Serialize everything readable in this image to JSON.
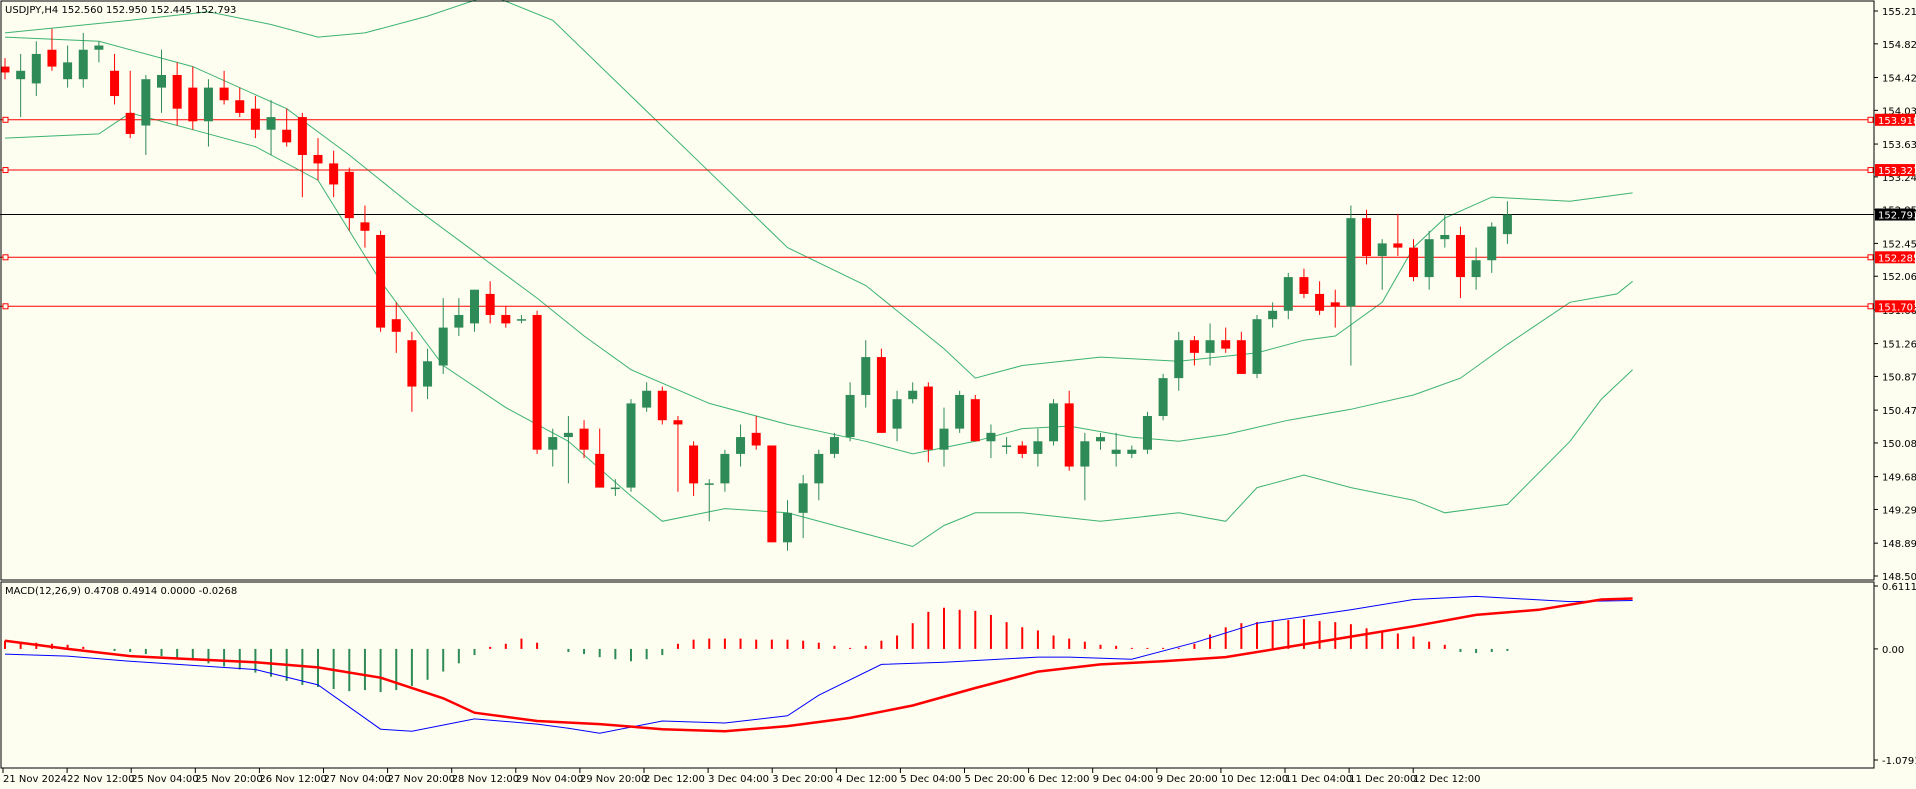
{
  "window": {
    "symbol_caption": "USDJPY,H4  152.560 152.950 152.445 152.793",
    "macd_caption": "MACD(12,26,9) 0.4708 0.4914 0.0000 -0.0268"
  },
  "colors": {
    "background": "#fdfdf0",
    "bull": "#2e8b57",
    "bear": "#ff0000",
    "bands": "#3cb371",
    "level": "#ff0000",
    "price_line": "#000000",
    "macd_signal": "#ff0000",
    "macd_main": "#0000ff"
  },
  "chart_data": [
    {
      "type": "candlestick",
      "title": "USDJPY,H4",
      "ylim": [
        148.5,
        155.21
      ],
      "y_ticks": [
        "155.210",
        "154.820",
        "154.420",
        "154.030",
        "153.630",
        "153.240",
        "152.850",
        "152.450",
        "152.060",
        "151.660",
        "151.260",
        "150.870",
        "150.470",
        "150.080",
        "149.680",
        "149.290",
        "148.890",
        "148.500"
      ],
      "x_ticks": [
        "21 Nov 2024",
        "22 Nov 12:00",
        "25 Nov 04:00",
        "25 Nov 20:00",
        "26 Nov 12:00",
        "27 Nov 04:00",
        "27 Nov 20:00",
        "28 Nov 12:00",
        "29 Nov 04:00",
        "29 Nov 20:00",
        "2 Dec 12:00",
        "3 Dec 04:00",
        "3 Dec 20:00",
        "4 Dec 12:00",
        "5 Dec 04:00",
        "5 Dec 20:00",
        "6 Dec 12:00",
        "9 Dec 04:00",
        "9 Dec 20:00",
        "10 Dec 12:00",
        "11 Dec 04:00",
        "11 Dec 20:00",
        "12 Dec 12:00"
      ],
      "levels": [
        {
          "label": "153.918",
          "value": 153.918
        },
        {
          "label": "153.321",
          "value": 153.321
        },
        {
          "label": "152.285",
          "value": 152.285
        },
        {
          "label": "151.703",
          "value": 151.703
        }
      ],
      "current_price": {
        "label": "152.793",
        "value": 152.793
      },
      "candles": [
        [
          154.55,
          154.65,
          154.4,
          154.48
        ],
        [
          154.4,
          154.7,
          153.95,
          154.5
        ],
        [
          154.35,
          154.85,
          154.2,
          154.7
        ],
        [
          154.75,
          155.0,
          154.5,
          154.55
        ],
        [
          154.4,
          154.8,
          154.3,
          154.6
        ],
        [
          154.4,
          154.95,
          154.3,
          154.75
        ],
        [
          154.75,
          154.85,
          154.6,
          154.8
        ],
        [
          154.5,
          154.7,
          154.1,
          154.2
        ],
        [
          154.0,
          154.5,
          153.7,
          153.75
        ],
        [
          153.85,
          154.45,
          153.5,
          154.4
        ],
        [
          154.3,
          154.75,
          154.0,
          154.45
        ],
        [
          154.45,
          154.6,
          153.85,
          154.05
        ],
        [
          154.3,
          154.55,
          153.8,
          153.9
        ],
        [
          153.9,
          154.4,
          153.6,
          154.3
        ],
        [
          154.3,
          154.5,
          154.1,
          154.15
        ],
        [
          154.15,
          154.3,
          153.95,
          154.0
        ],
        [
          154.05,
          154.2,
          153.7,
          153.8
        ],
        [
          153.8,
          154.15,
          153.5,
          153.95
        ],
        [
          153.8,
          154.05,
          153.6,
          153.65
        ],
        [
          153.95,
          154.0,
          153.0,
          153.5
        ],
        [
          153.5,
          153.7,
          153.2,
          153.4
        ],
        [
          153.4,
          153.55,
          153.0,
          153.15
        ],
        [
          153.3,
          153.35,
          152.6,
          152.75
        ],
        [
          152.7,
          152.9,
          152.4,
          152.6
        ],
        [
          152.55,
          152.6,
          151.4,
          151.45
        ],
        [
          151.55,
          151.75,
          151.15,
          151.4
        ],
        [
          151.3,
          151.4,
          150.45,
          150.75
        ],
        [
          150.75,
          151.2,
          150.6,
          151.05
        ],
        [
          151.0,
          151.8,
          150.9,
          151.45
        ],
        [
          151.45,
          151.8,
          151.35,
          151.6
        ],
        [
          151.5,
          151.9,
          151.4,
          151.9
        ],
        [
          151.85,
          152.0,
          151.5,
          151.6
        ],
        [
          151.6,
          151.7,
          151.45,
          151.5
        ],
        [
          151.55,
          151.6,
          151.5,
          151.55
        ],
        [
          151.6,
          151.65,
          149.95,
          150.0
        ],
        [
          150.0,
          150.25,
          149.8,
          150.15
        ],
        [
          150.15,
          150.4,
          149.6,
          150.2
        ],
        [
          150.25,
          150.35,
          149.9,
          150.0
        ],
        [
          149.95,
          150.25,
          149.55,
          149.55
        ],
        [
          149.55,
          149.65,
          149.45,
          149.55
        ],
        [
          149.55,
          150.6,
          149.5,
          150.55
        ],
        [
          150.5,
          150.8,
          150.45,
          150.7
        ],
        [
          150.7,
          150.75,
          150.3,
          150.35
        ],
        [
          150.35,
          150.4,
          149.5,
          150.3
        ],
        [
          150.05,
          150.1,
          149.45,
          149.6
        ],
        [
          149.6,
          149.65,
          149.15,
          149.6
        ],
        [
          149.6,
          150.0,
          149.5,
          149.95
        ],
        [
          149.95,
          150.3,
          149.8,
          150.15
        ],
        [
          150.2,
          150.4,
          150.0,
          150.05
        ],
        [
          150.05,
          150.05,
          148.9,
          148.9
        ],
        [
          148.9,
          149.4,
          148.8,
          149.25
        ],
        [
          149.25,
          149.7,
          148.95,
          149.6
        ],
        [
          149.6,
          150.0,
          149.4,
          149.95
        ],
        [
          149.95,
          150.2,
          149.9,
          150.15
        ],
        [
          150.15,
          150.8,
          150.1,
          150.65
        ],
        [
          150.65,
          151.3,
          150.5,
          151.1
        ],
        [
          151.1,
          151.2,
          150.2,
          150.2
        ],
        [
          150.25,
          150.7,
          150.1,
          150.6
        ],
        [
          150.6,
          150.8,
          150.55,
          150.7
        ],
        [
          150.75,
          150.8,
          149.85,
          150.0
        ],
        [
          150.0,
          150.5,
          149.8,
          150.25
        ],
        [
          150.25,
          150.7,
          150.2,
          150.65
        ],
        [
          150.6,
          150.65,
          150.1,
          150.1
        ],
        [
          150.1,
          150.3,
          149.9,
          150.2
        ],
        [
          150.05,
          150.15,
          149.95,
          150.05
        ],
        [
          150.05,
          150.1,
          149.9,
          149.95
        ],
        [
          149.95,
          150.25,
          149.8,
          150.1
        ],
        [
          150.1,
          150.6,
          150.05,
          150.55
        ],
        [
          150.55,
          150.7,
          149.75,
          149.8
        ],
        [
          149.8,
          150.2,
          149.4,
          150.1
        ],
        [
          150.1,
          150.2,
          150.0,
          150.15
        ],
        [
          149.95,
          150.2,
          149.8,
          150.0
        ],
        [
          149.95,
          150.05,
          149.9,
          150.0
        ],
        [
          150.0,
          150.45,
          149.95,
          150.4
        ],
        [
          150.4,
          150.9,
          150.35,
          150.85
        ],
        [
          150.85,
          151.4,
          150.7,
          151.3
        ],
        [
          151.3,
          151.35,
          151.0,
          151.15
        ],
        [
          151.15,
          151.5,
          151.0,
          151.3
        ],
        [
          151.3,
          151.45,
          151.15,
          151.2
        ],
        [
          151.3,
          151.4,
          150.9,
          150.9
        ],
        [
          150.9,
          151.6,
          150.85,
          151.55
        ],
        [
          151.55,
          151.75,
          151.45,
          151.65
        ],
        [
          151.65,
          152.1,
          151.55,
          152.05
        ],
        [
          152.05,
          152.15,
          151.8,
          151.85
        ],
        [
          151.85,
          152.0,
          151.6,
          151.65
        ],
        [
          151.75,
          151.9,
          151.45,
          151.7
        ],
        [
          151.7,
          152.9,
          151.0,
          152.75
        ],
        [
          152.75,
          152.85,
          152.2,
          152.3
        ],
        [
          152.3,
          152.5,
          151.9,
          152.45
        ],
        [
          152.45,
          152.8,
          152.3,
          152.4
        ],
        [
          152.4,
          152.5,
          152.0,
          152.05
        ],
        [
          152.05,
          152.6,
          151.9,
          152.5
        ],
        [
          152.5,
          152.8,
          152.4,
          152.55
        ],
        [
          152.55,
          152.65,
          151.8,
          152.05
        ],
        [
          152.05,
          152.4,
          151.9,
          152.25
        ],
        [
          152.25,
          152.7,
          152.1,
          152.65
        ],
        [
          152.56,
          152.95,
          152.445,
          152.793
        ]
      ],
      "bands_upper": [
        [
          0,
          154.95
        ],
        [
          8,
          155.1
        ],
        [
          13,
          155.2
        ],
        [
          17,
          155.05
        ],
        [
          20,
          154.9
        ],
        [
          23,
          154.95
        ],
        [
          27,
          155.15
        ],
        [
          31,
          155.4
        ],
        [
          35,
          155.1
        ],
        [
          40,
          154.2
        ],
        [
          45,
          153.3
        ],
        [
          50,
          152.4
        ],
        [
          55,
          151.95
        ],
        [
          60,
          151.2
        ],
        [
          62,
          150.85
        ],
        [
          65,
          151.0
        ],
        [
          70,
          151.1
        ],
        [
          75,
          151.05
        ],
        [
          80,
          151.15
        ],
        [
          83,
          151.3
        ],
        [
          85,
          151.35
        ],
        [
          88,
          151.75
        ],
        [
          90,
          152.4
        ],
        [
          92,
          152.75
        ],
        [
          95,
          153.0
        ],
        [
          100,
          152.95
        ],
        [
          104,
          153.05
        ]
      ],
      "bands_mid": [
        [
          0,
          154.9
        ],
        [
          6,
          154.85
        ],
        [
          12,
          154.55
        ],
        [
          18,
          154.05
        ],
        [
          22,
          153.5
        ],
        [
          26,
          152.9
        ],
        [
          30,
          152.35
        ],
        [
          34,
          151.8
        ],
        [
          37,
          151.35
        ],
        [
          40,
          150.95
        ],
        [
          45,
          150.55
        ],
        [
          50,
          150.3
        ],
        [
          55,
          150.1
        ],
        [
          58,
          149.95
        ],
        [
          62,
          150.1
        ],
        [
          65,
          150.25
        ],
        [
          68,
          150.28
        ],
        [
          72,
          150.15
        ],
        [
          75,
          150.1
        ],
        [
          78,
          150.18
        ],
        [
          82,
          150.35
        ],
        [
          86,
          150.48
        ],
        [
          90,
          150.65
        ],
        [
          93,
          150.85
        ],
        [
          96,
          151.25
        ],
        [
          100,
          151.75
        ],
        [
          103,
          151.85
        ],
        [
          104,
          152.0
        ]
      ],
      "bands_lower": [
        [
          0,
          153.7
        ],
        [
          6,
          153.75
        ],
        [
          8,
          154.0
        ],
        [
          12,
          153.8
        ],
        [
          16,
          153.6
        ],
        [
          20,
          153.2
        ],
        [
          24,
          152.0
        ],
        [
          28,
          151.0
        ],
        [
          32,
          150.5
        ],
        [
          36,
          150.1
        ],
        [
          40,
          149.45
        ],
        [
          42,
          149.15
        ],
        [
          46,
          149.3
        ],
        [
          50,
          149.25
        ],
        [
          55,
          149.0
        ],
        [
          58,
          148.85
        ],
        [
          60,
          149.1
        ],
        [
          62,
          149.25
        ],
        [
          65,
          149.25
        ],
        [
          70,
          149.15
        ],
        [
          75,
          149.25
        ],
        [
          78,
          149.15
        ],
        [
          80,
          149.55
        ],
        [
          83,
          149.7
        ],
        [
          86,
          149.55
        ],
        [
          90,
          149.4
        ],
        [
          92,
          149.25
        ],
        [
          96,
          149.35
        ],
        [
          100,
          150.1
        ],
        [
          102,
          150.6
        ],
        [
          104,
          150.95
        ]
      ]
    },
    {
      "type": "histogram-line",
      "title": "MACD(12,26,9)",
      "ylim": [
        -1.0791,
        0.6111
      ],
      "y_ticks": [
        "0.6111",
        "0.00",
        "-1.0791"
      ],
      "histogram": [
        0.08,
        0.07,
        0.06,
        0.05,
        0.04,
        0.02,
        0.0,
        -0.02,
        -0.03,
        -0.05,
        -0.07,
        -0.09,
        -0.11,
        -0.14,
        -0.17,
        -0.2,
        -0.23,
        -0.27,
        -0.31,
        -0.35,
        -0.37,
        -0.39,
        -0.41,
        -0.4,
        -0.42,
        -0.4,
        -0.36,
        -0.3,
        -0.22,
        -0.14,
        -0.06,
        0.02,
        0.05,
        0.1,
        0.06,
        0.0,
        -0.03,
        -0.05,
        -0.08,
        -0.1,
        -0.12,
        -0.1,
        -0.06,
        0.05,
        0.09,
        0.1,
        0.1,
        0.1,
        0.09,
        0.09,
        0.09,
        0.08,
        0.06,
        0.03,
        0.01,
        0.03,
        0.08,
        0.13,
        0.25,
        0.36,
        0.4,
        0.38,
        0.37,
        0.33,
        0.26,
        0.21,
        0.18,
        0.13,
        0.1,
        0.07,
        0.04,
        0.03,
        0.01,
        0.01,
        0.01,
        0.01,
        0.05,
        0.14,
        0.21,
        0.25,
        0.26,
        0.27,
        0.28,
        0.29,
        0.27,
        0.26,
        0.24,
        0.2,
        0.17,
        0.15,
        0.12,
        0.07,
        0.04,
        -0.03,
        -0.04,
        -0.03,
        -0.02
      ],
      "signal": [
        [
          0,
          0.08
        ],
        [
          4,
          0.0
        ],
        [
          8,
          -0.07
        ],
        [
          12,
          -0.1
        ],
        [
          16,
          -0.13
        ],
        [
          20,
          -0.18
        ],
        [
          24,
          -0.28
        ],
        [
          28,
          -0.48
        ],
        [
          30,
          -0.62
        ],
        [
          34,
          -0.7
        ],
        [
          38,
          -0.73
        ],
        [
          42,
          -0.78
        ],
        [
          46,
          -0.8
        ],
        [
          50,
          -0.75
        ],
        [
          54,
          -0.67
        ],
        [
          58,
          -0.55
        ],
        [
          62,
          -0.38
        ],
        [
          66,
          -0.22
        ],
        [
          70,
          -0.15
        ],
        [
          74,
          -0.12
        ],
        [
          78,
          -0.08
        ],
        [
          82,
          0.02
        ],
        [
          86,
          0.12
        ],
        [
          90,
          0.22
        ],
        [
          94,
          0.33
        ],
        [
          98,
          0.38
        ],
        [
          102,
          0.48
        ],
        [
          104,
          0.49
        ]
      ],
      "main": [
        [
          0,
          -0.05
        ],
        [
          4,
          -0.07
        ],
        [
          8,
          -0.12
        ],
        [
          12,
          -0.16
        ],
        [
          16,
          -0.2
        ],
        [
          20,
          -0.35
        ],
        [
          24,
          -0.78
        ],
        [
          26,
          -0.8
        ],
        [
          30,
          -0.68
        ],
        [
          34,
          -0.73
        ],
        [
          36,
          -0.77
        ],
        [
          38,
          -0.82
        ],
        [
          42,
          -0.7
        ],
        [
          46,
          -0.72
        ],
        [
          50,
          -0.65
        ],
        [
          52,
          -0.45
        ],
        [
          56,
          -0.15
        ],
        [
          60,
          -0.13
        ],
        [
          66,
          -0.08
        ],
        [
          68,
          -0.08
        ],
        [
          72,
          -0.1
        ],
        [
          76,
          0.06
        ],
        [
          80,
          0.25
        ],
        [
          86,
          0.38
        ],
        [
          90,
          0.48
        ],
        [
          94,
          0.51
        ],
        [
          100,
          0.46
        ],
        [
          104,
          0.47
        ]
      ]
    }
  ]
}
